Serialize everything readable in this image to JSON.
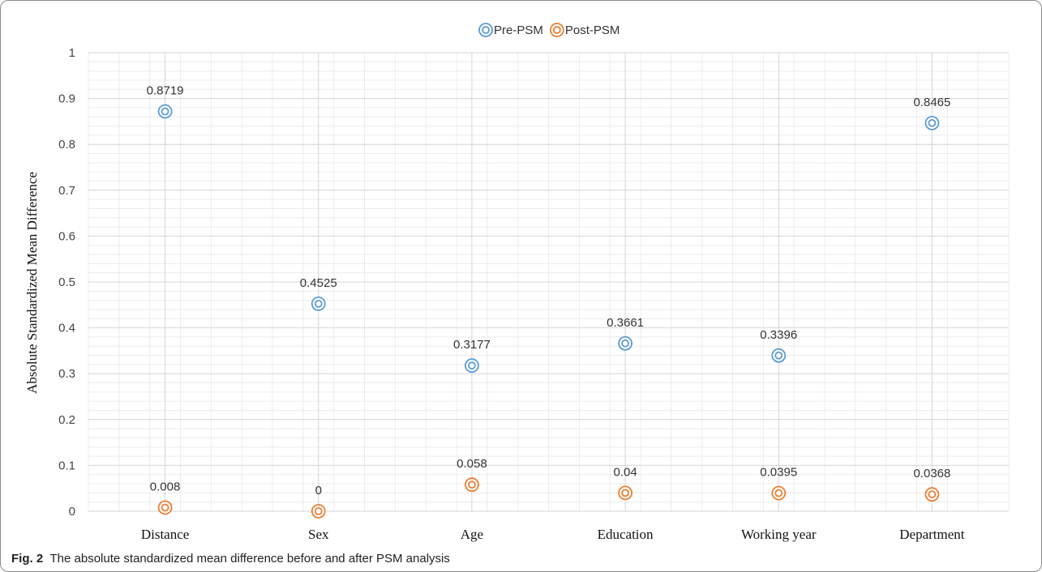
{
  "chart_data": {
    "type": "scatter",
    "title": "",
    "xlabel": "",
    "ylabel": "Absolute Standardized Mean Difference",
    "ylim": [
      0,
      1
    ],
    "yticks": [
      "0",
      "0.1",
      "0.2",
      "0.3",
      "0.4",
      "0.5",
      "0.6",
      "0.7",
      "0.8",
      "0.9",
      "1"
    ],
    "categories": [
      "Distance",
      "Sex",
      "Age",
      "Education",
      "Working year",
      "Department"
    ],
    "grid": true,
    "legend_position": "top",
    "series": [
      {
        "name": "Pre-PSM",
        "color": "#5b9bd5",
        "values": [
          0.8719,
          0.4525,
          0.3177,
          0.3661,
          0.3396,
          0.8465
        ],
        "labels": [
          "0.8719",
          "0.4525",
          "0.3177",
          "0.3661",
          "0.3396",
          "0.8465"
        ]
      },
      {
        "name": "Post-PSM",
        "color": "#ed7d31",
        "values": [
          0.008,
          0,
          0.058,
          0.04,
          0.0395,
          0.0368
        ],
        "labels": [
          "0.008",
          "0",
          "0.058",
          "0.04",
          "0.0395",
          "0.0368"
        ]
      }
    ]
  },
  "caption": {
    "label": "Fig. 2",
    "text": "The absolute standardized mean difference before and after PSM analysis"
  }
}
